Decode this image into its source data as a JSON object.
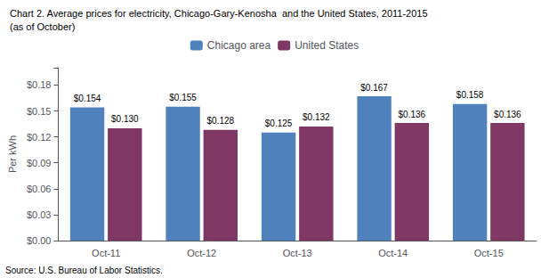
{
  "chart_data": {
    "type": "bar",
    "title": "Chart 2. Average prices for electricity, Chicago-Gary-Kenosha  and the United States, 2011-2015",
    "subtitle": "(as of October)",
    "ylabel": "Per kWh",
    "annotations": [
      "Source: U.S. Bureau of Labor Statistics."
    ],
    "categories": [
      "Oct-11",
      "Oct-12",
      "Oct-13",
      "Oct-14",
      "Oct-15"
    ],
    "series": [
      {
        "name": "Chicago area",
        "color": "#4F81BD",
        "values": [
          0.154,
          0.155,
          0.125,
          0.167,
          0.158
        ],
        "value_labels": [
          "$0.154",
          "$0.155",
          "$0.125",
          "$0.167",
          "$0.158"
        ]
      },
      {
        "name": "United States",
        "color": "#7F3864",
        "values": [
          0.13,
          0.128,
          0.132,
          0.136,
          0.136
        ],
        "value_labels": [
          "$0.130",
          "$0.128",
          "$0.132",
          "$0.136",
          "$0.136"
        ]
      }
    ],
    "ylim": [
      0,
      0.2
    ],
    "yticks": [
      {
        "value": 0.0,
        "label": "$0.00"
      },
      {
        "value": 0.03,
        "label": "$0.03"
      },
      {
        "value": 0.06,
        "label": "$0.06"
      },
      {
        "value": 0.09,
        "label": "$0.09"
      },
      {
        "value": 0.12,
        "label": "$0.12"
      },
      {
        "value": 0.15,
        "label": "$0.15"
      },
      {
        "value": 0.18,
        "label": "$0.18"
      }
    ],
    "grid": false,
    "legend": "top",
    "data_labels": true
  }
}
